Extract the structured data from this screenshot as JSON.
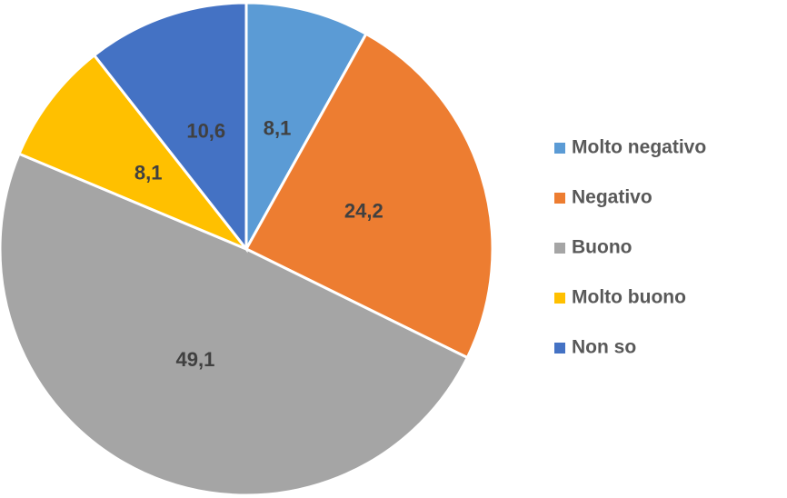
{
  "chart_data": {
    "type": "pie",
    "categories": [
      "Molto negativo",
      "Negativo",
      "Buono",
      "Molto buono",
      "Non so"
    ],
    "values": [
      8.1,
      24.2,
      49.1,
      8.1,
      10.6
    ],
    "value_labels": [
      "8,1",
      "24,2",
      "49,1",
      "8,1",
      "10,6"
    ],
    "colors": [
      "#5b9bd5",
      "#ed7d31",
      "#a5a5a5",
      "#ffc000",
      "#4472c4"
    ],
    "legend": "right"
  }
}
